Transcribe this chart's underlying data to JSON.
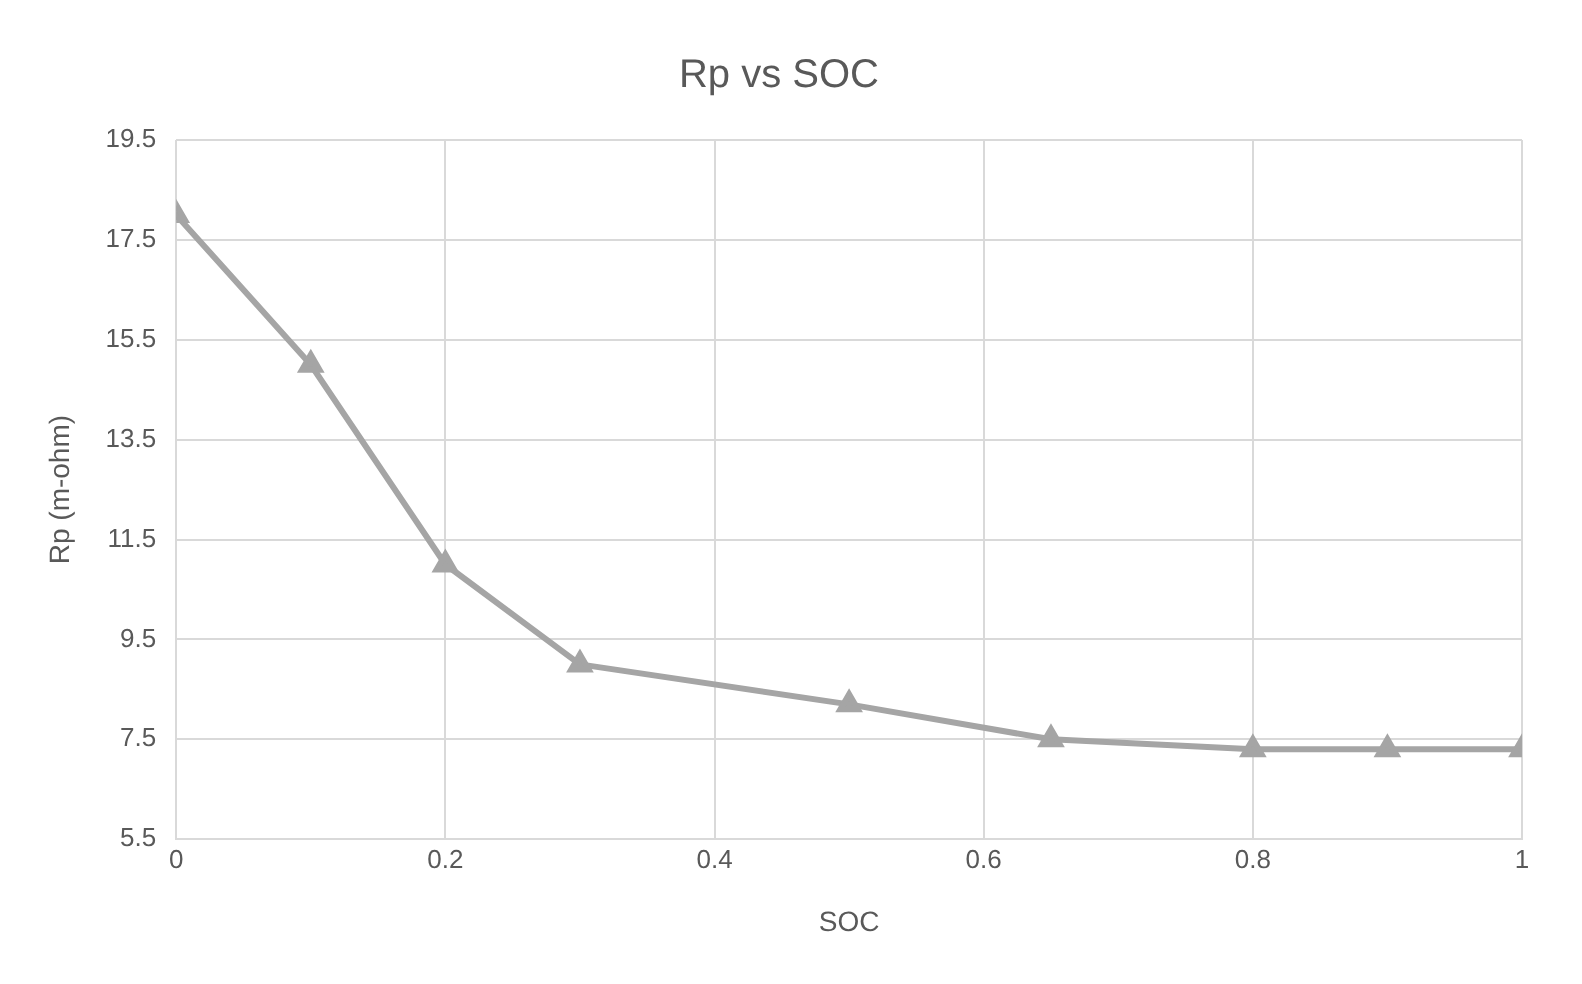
{
  "chart_data": {
    "type": "line",
    "title": "Rp vs SOC",
    "xlabel": "SOC",
    "ylabel": "Rp (m-ohm)",
    "x": [
      0,
      0.1,
      0.2,
      0.3,
      0.5,
      0.65,
      0.8,
      0.9,
      1
    ],
    "series": [
      {
        "color": "#a5a5a5",
        "values": [
          18,
          15,
          11,
          9,
          8.2,
          7.5,
          7.3,
          7.3,
          7.3
        ]
      }
    ],
    "xlim": [
      0,
      1
    ],
    "xticks": [
      0,
      {
        "value": 0.2,
        "label": "0.2"
      },
      {
        "value": 0.4,
        "label": "0.4"
      },
      {
        "value": 0.6,
        "label": "0.6"
      },
      {
        "value": 0.8,
        "label": "0.8"
      },
      1
    ],
    "ylim": [
      5.5,
      19.5
    ],
    "yticks": [
      5.5,
      7.5,
      9.5,
      11.5,
      13.5,
      15.5,
      17.5,
      19.5
    ],
    "grid": true,
    "legend": false,
    "marker": "triangle",
    "line_style": "solid"
  }
}
